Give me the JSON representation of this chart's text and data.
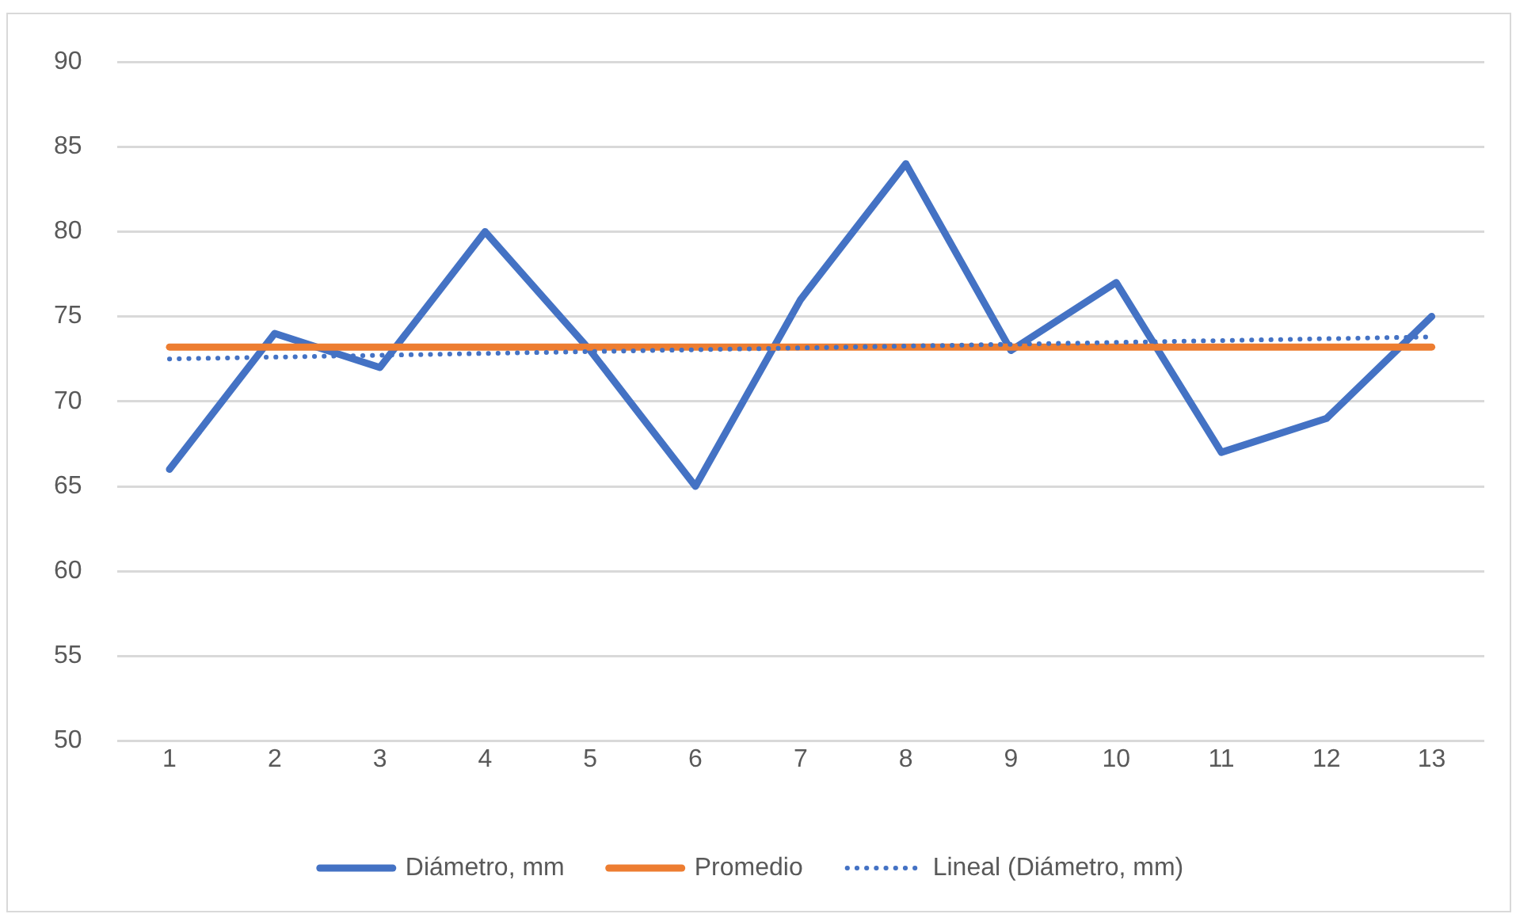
{
  "chart_data": {
    "type": "line",
    "x": [
      1,
      2,
      3,
      4,
      5,
      6,
      7,
      8,
      9,
      10,
      11,
      12,
      13
    ],
    "xlim": [
      0.5,
      13.5
    ],
    "xticks": [
      1,
      2,
      3,
      4,
      5,
      6,
      7,
      8,
      9,
      10,
      11,
      12,
      13
    ],
    "ylim": [
      50,
      90
    ],
    "yticks": [
      50,
      55,
      60,
      65,
      70,
      75,
      80,
      85,
      90
    ],
    "grid": "y",
    "legend": "bottom",
    "marker": "none",
    "series": [
      {
        "name": "Diámetro, mm",
        "color": "#4472c4",
        "values": [
          66,
          74,
          72,
          80,
          73,
          65,
          76,
          84,
          73,
          77,
          67,
          69,
          75
        ]
      },
      {
        "name": "Promedio",
        "color": "#ed7d31",
        "values": [
          73.2,
          73.2,
          73.2,
          73.2,
          73.2,
          73.2,
          73.2,
          73.2,
          73.2,
          73.2,
          73.2,
          73.2,
          73.2
        ]
      },
      {
        "name": "Lineal (Diámetro, mm)",
        "color": "#4472c4",
        "x": [
          1,
          13
        ],
        "values": [
          72.5,
          73.8
        ],
        "line_style": "dotted"
      }
    ]
  }
}
